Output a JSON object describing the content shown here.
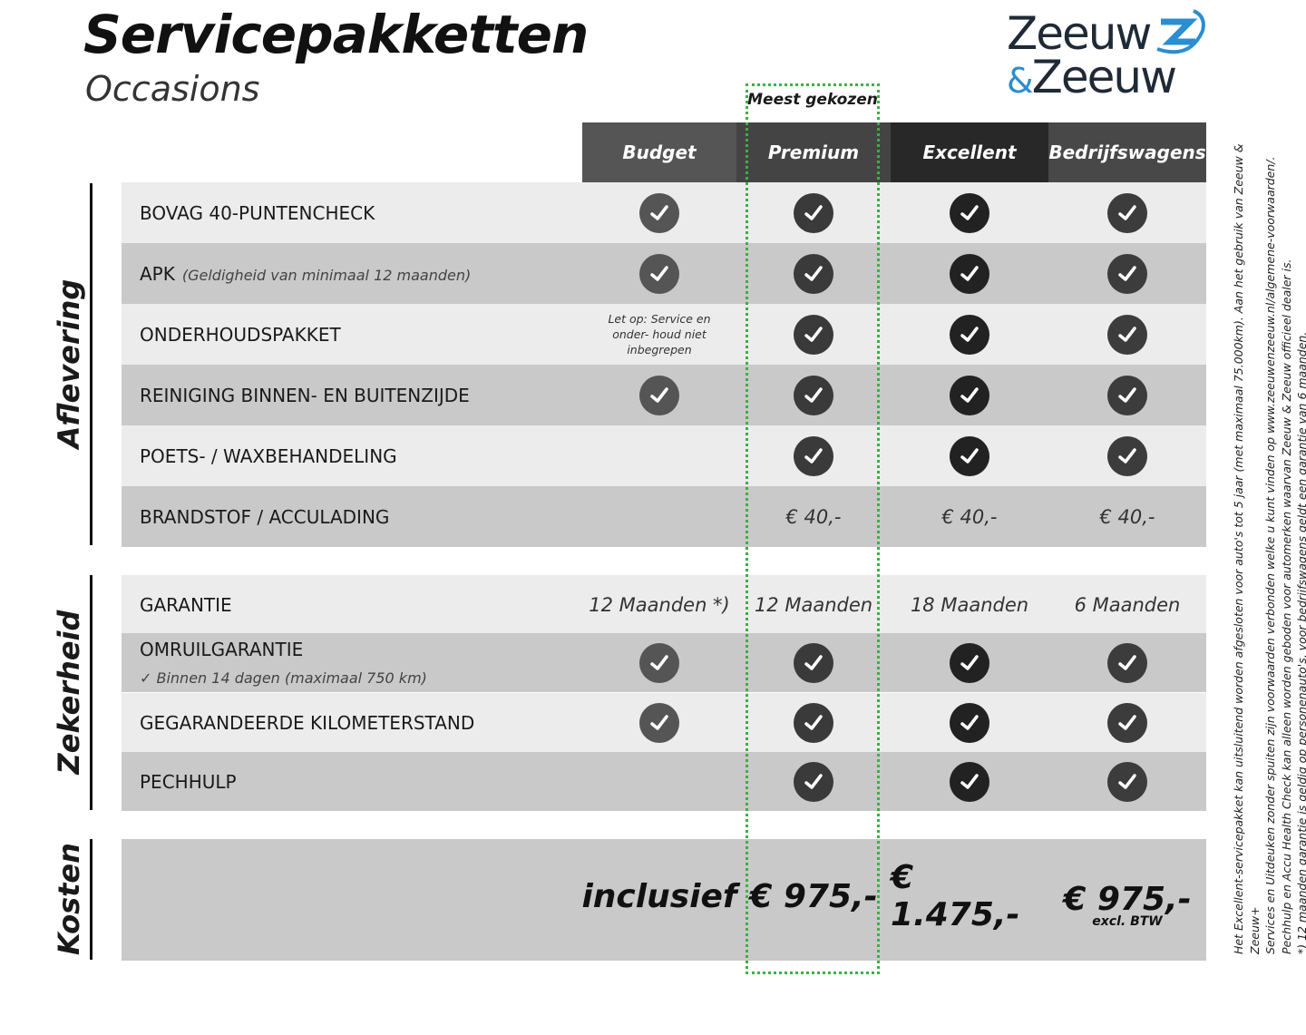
{
  "header": {
    "title": "Servicepakketten",
    "subtitle": "Occasions"
  },
  "logo": {
    "line1": "Zeeuw",
    "amp": "&",
    "line2": "Zeeuw"
  },
  "badge": "Meest gekozen",
  "columns": [
    "Budget",
    "Premium",
    "Excellent",
    "Bedrijfswagens"
  ],
  "colors": {
    "header": [
      "#555555",
      "#444444",
      "#282828",
      "#484848"
    ],
    "check": [
      "#555555",
      "#3a3a3a",
      "#222222",
      "#3c3c3c"
    ],
    "row_light": "#ececec",
    "row_dark": "#c9c9c9",
    "highlight": "#3cb043",
    "logo_blue": "#2a8ed0",
    "logo_dark": "#1f2a36"
  },
  "sections": [
    {
      "label": "Aflevering",
      "rows": [
        {
          "label": "BOVAG 40-PUNTENCHECK",
          "cells": [
            "check",
            "check",
            "check",
            "check"
          ]
        },
        {
          "label": "APK",
          "note": "(Geldigheid van minimaal 12 maanden)",
          "cells": [
            "check",
            "check",
            "check",
            "check"
          ]
        },
        {
          "label": "ONDERHOUDSPAKKET",
          "cells": [
            {
              "bold": "Let op:",
              "text": "Service en onder- houd niet inbegrepen"
            },
            "check",
            "check",
            "check"
          ]
        },
        {
          "label": "REINIGING BINNEN- EN BUITENZIJDE",
          "cells": [
            "check",
            "check",
            "check",
            "check"
          ]
        },
        {
          "label": "POETS- / WAXBEHANDELING",
          "cells": [
            "",
            "check",
            "check",
            "check"
          ]
        },
        {
          "label": "BRANDSTOF / ACCULADING",
          "cells": [
            "",
            "€ 40,-",
            "€ 40,-",
            "€ 40,-"
          ]
        }
      ]
    },
    {
      "label": "Zekerheid",
      "rows": [
        {
          "label": "GARANTIE",
          "cells": [
            "12 Maanden *)",
            "12 Maanden",
            "18 Maanden",
            "6 Maanden"
          ]
        },
        {
          "label": "OMRUILGARANTIE",
          "sub": "✓   Binnen 14 dagen (maximaal 750 km)",
          "cells": [
            "check",
            "check",
            "check",
            "check"
          ]
        },
        {
          "label": "GEGARANDEERDE KILOMETERSTAND",
          "cells": [
            "check",
            "check",
            "check",
            "check"
          ]
        },
        {
          "label": "PECHHULP",
          "cells": [
            "",
            "check",
            "check",
            "check"
          ]
        }
      ]
    },
    {
      "label": "Kosten",
      "rows": [
        {
          "label": "",
          "cells": [
            "inclusief",
            "€ 975,-",
            "€ 1.475,-",
            {
              "price": "€ 975,-",
              "sub": "excl. BTW"
            }
          ]
        }
      ]
    }
  ],
  "footnotes": [
    "Het Excellent-servicepakket kan uitsluitend worden afgesloten voor auto's tot 5 jaar (met maximaal 75.000km). Aan het gebruik van Zeeuw & Zeeuw+",
    "Services en Uitdeuken zonder spuiten zijn voorwaarden verbonden welke u kunt vinden op www.zeeuwenzeeuw.nl/algemene-voorwaarden/.",
    "Pechhulp en Accu Health Check kan alleen worden geboden voor automerken waarvan Zeeuw & Zeeuw officieel dealer is.",
    "*) 12 maanden garantie is geldig op personenauto's, voor bedrijfswagens geldt een garantie van 6 maanden."
  ]
}
